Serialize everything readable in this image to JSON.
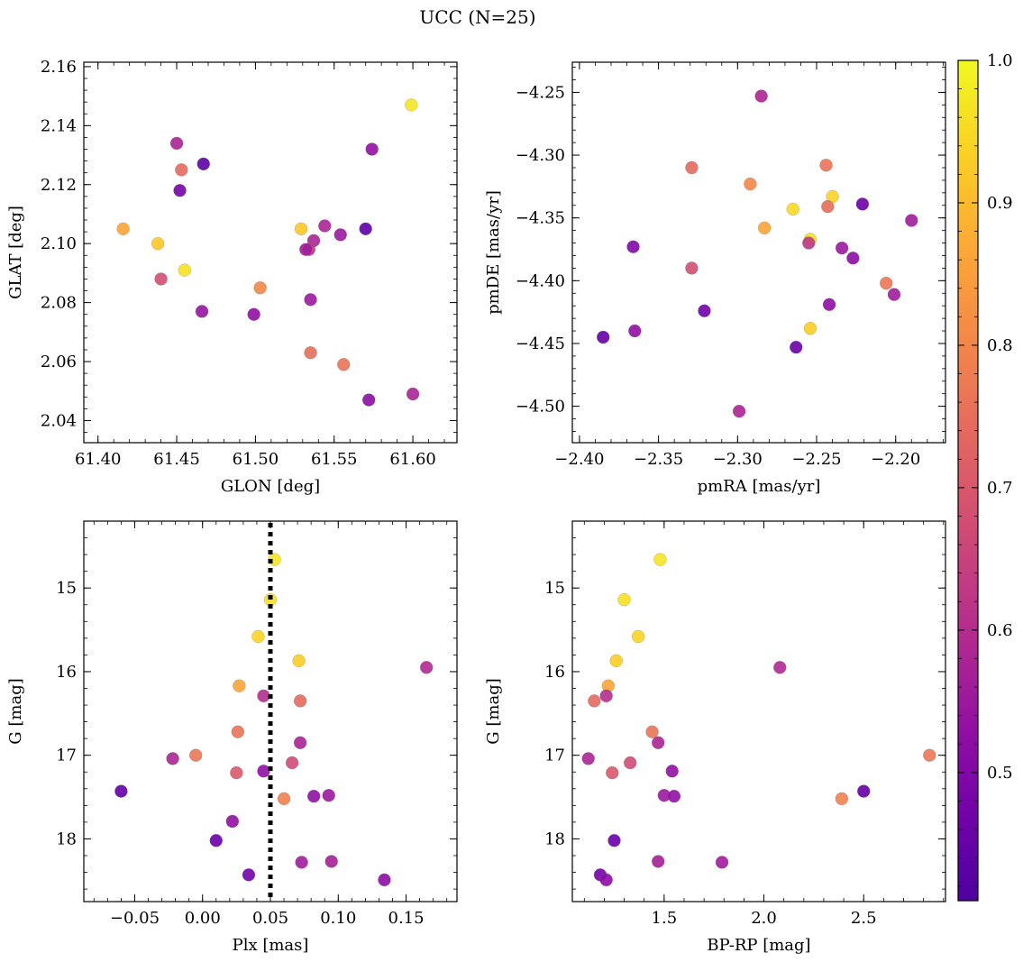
{
  "suptitle": "UCC (N=25)",
  "colorbar": {
    "colormap": "plasma",
    "range": [
      0.41,
      1.0
    ],
    "ticks": [
      0.5,
      0.6,
      0.7,
      0.8,
      0.9,
      1.0
    ],
    "tick_labels": [
      "0.5",
      "0.6",
      "0.7",
      "0.8",
      "0.9",
      "1.0"
    ]
  },
  "chart_data": [
    {
      "type": "scatter",
      "xlabel": "GLON [deg]",
      "ylabel": "GLAT [deg]",
      "xlim": [
        61.391,
        61.628
      ],
      "ylim": [
        2.0325,
        2.1615
      ],
      "xticks": [
        61.4,
        61.45,
        61.5,
        61.55,
        61.6
      ],
      "xtick_labels": [
        "61.40",
        "61.45",
        "61.50",
        "61.55",
        "61.60"
      ],
      "yticks": [
        2.04,
        2.06,
        2.08,
        2.1,
        2.12,
        2.14,
        2.16
      ],
      "ytick_labels": [
        "2.04",
        "2.06",
        "2.08",
        "2.10",
        "2.12",
        "2.14",
        "2.16"
      ],
      "points": [
        {
          "x": 61.599,
          "y": 2.147,
          "c": 0.97
        },
        {
          "x": 61.45,
          "y": 2.134,
          "c": 0.58
        },
        {
          "x": 61.574,
          "y": 2.132,
          "c": 0.53
        },
        {
          "x": 61.467,
          "y": 2.127,
          "c": 0.44
        },
        {
          "x": 61.453,
          "y": 2.125,
          "c": 0.74
        },
        {
          "x": 61.452,
          "y": 2.118,
          "c": 0.48
        },
        {
          "x": 61.544,
          "y": 2.106,
          "c": 0.58
        },
        {
          "x": 61.416,
          "y": 2.105,
          "c": 0.86
        },
        {
          "x": 61.529,
          "y": 2.105,
          "c": 0.92
        },
        {
          "x": 61.57,
          "y": 2.105,
          "c": 0.44
        },
        {
          "x": 61.554,
          "y": 2.103,
          "c": 0.55
        },
        {
          "x": 61.537,
          "y": 2.101,
          "c": 0.58
        },
        {
          "x": 61.438,
          "y": 2.1,
          "c": 0.92
        },
        {
          "x": 61.534,
          "y": 2.098,
          "c": 0.62
        },
        {
          "x": 61.532,
          "y": 2.098,
          "c": 0.56
        },
        {
          "x": 61.455,
          "y": 2.091,
          "c": 0.96
        },
        {
          "x": 61.44,
          "y": 2.088,
          "c": 0.68
        },
        {
          "x": 61.503,
          "y": 2.085,
          "c": 0.8
        },
        {
          "x": 61.535,
          "y": 2.081,
          "c": 0.55
        },
        {
          "x": 61.466,
          "y": 2.077,
          "c": 0.54
        },
        {
          "x": 61.499,
          "y": 2.076,
          "c": 0.53
        },
        {
          "x": 61.535,
          "y": 2.063,
          "c": 0.75
        },
        {
          "x": 61.556,
          "y": 2.059,
          "c": 0.76
        },
        {
          "x": 61.6,
          "y": 2.049,
          "c": 0.58
        },
        {
          "x": 61.572,
          "y": 2.047,
          "c": 0.52
        }
      ]
    },
    {
      "type": "scatter",
      "xlabel": "pmRA [mas/yr]",
      "ylabel": "pmDE [mas/yr]",
      "xlim": [
        -2.4045,
        -2.1685
      ],
      "ylim": [
        -4.529,
        -4.226
      ],
      "xticks": [
        -2.4,
        -2.35,
        -2.3,
        -2.25,
        -2.2
      ],
      "xtick_labels": [
        "−2.40",
        "−2.35",
        "−2.30",
        "−2.25",
        "−2.20"
      ],
      "yticks": [
        -4.5,
        -4.45,
        -4.4,
        -4.35,
        -4.3,
        -4.25
      ],
      "ytick_labels": [
        "−4.50",
        "−4.45",
        "−4.40",
        "−4.35",
        "−4.30",
        "−4.25"
      ],
      "points": [
        {
          "x": -2.285,
          "y": -4.253,
          "c": 0.58
        },
        {
          "x": -2.244,
          "y": -4.308,
          "c": 0.76
        },
        {
          "x": -2.329,
          "y": -4.31,
          "c": 0.74
        },
        {
          "x": -2.292,
          "y": -4.323,
          "c": 0.8
        },
        {
          "x": -2.24,
          "y": -4.333,
          "c": 0.94
        },
        {
          "x": -2.221,
          "y": -4.339,
          "c": 0.46
        },
        {
          "x": -2.243,
          "y": -4.341,
          "c": 0.75
        },
        {
          "x": -2.265,
          "y": -4.343,
          "c": 0.95
        },
        {
          "x": -2.19,
          "y": -4.352,
          "c": 0.56
        },
        {
          "x": -2.283,
          "y": -4.358,
          "c": 0.86
        },
        {
          "x": -2.254,
          "y": -4.367,
          "c": 0.96
        },
        {
          "x": -2.255,
          "y": -4.37,
          "c": 0.62
        },
        {
          "x": -2.366,
          "y": -4.373,
          "c": 0.5
        },
        {
          "x": -2.234,
          "y": -4.374,
          "c": 0.55
        },
        {
          "x": -2.227,
          "y": -4.382,
          "c": 0.52
        },
        {
          "x": -2.329,
          "y": -4.39,
          "c": 0.68
        },
        {
          "x": -2.206,
          "y": -4.402,
          "c": 0.77
        },
        {
          "x": -2.201,
          "y": -4.411,
          "c": 0.56
        },
        {
          "x": -2.242,
          "y": -4.419,
          "c": 0.53
        },
        {
          "x": -2.321,
          "y": -4.424,
          "c": 0.47
        },
        {
          "x": -2.254,
          "y": -4.438,
          "c": 0.93
        },
        {
          "x": -2.365,
          "y": -4.44,
          "c": 0.53
        },
        {
          "x": -2.385,
          "y": -4.445,
          "c": 0.45
        },
        {
          "x": -2.263,
          "y": -4.453,
          "c": 0.46
        },
        {
          "x": -2.299,
          "y": -4.504,
          "c": 0.58
        }
      ]
    },
    {
      "type": "scatter",
      "xlabel": "Plx [mas]",
      "ylabel": "G [mag]",
      "xlim": [
        -0.0875,
        0.1875
      ],
      "ylim": [
        18.75,
        14.2
      ],
      "xticks": [
        -0.05,
        0.0,
        0.05,
        0.1,
        0.15
      ],
      "xtick_labels": [
        "−0.05",
        "0.00",
        "0.05",
        "0.10",
        "0.15"
      ],
      "yticks": [
        15,
        16,
        17,
        18
      ],
      "ytick_labels": [
        "15",
        "16",
        "17",
        "18"
      ],
      "vline": 0.05,
      "points": [
        {
          "x": 0.053,
          "y": 14.66,
          "c": 0.97
        },
        {
          "x": 0.05,
          "y": 15.14,
          "c": 0.96
        },
        {
          "x": 0.041,
          "y": 15.58,
          "c": 0.94
        },
        {
          "x": 0.071,
          "y": 15.87,
          "c": 0.93
        },
        {
          "x": 0.165,
          "y": 15.95,
          "c": 0.59
        },
        {
          "x": 0.027,
          "y": 16.17,
          "c": 0.86
        },
        {
          "x": 0.045,
          "y": 16.29,
          "c": 0.6
        },
        {
          "x": 0.072,
          "y": 16.35,
          "c": 0.74
        },
        {
          "x": 0.026,
          "y": 16.72,
          "c": 0.76
        },
        {
          "x": 0.072,
          "y": 16.85,
          "c": 0.58
        },
        {
          "x": -0.005,
          "y": 17.0,
          "c": 0.77
        },
        {
          "x": -0.022,
          "y": 17.04,
          "c": 0.58
        },
        {
          "x": 0.066,
          "y": 17.09,
          "c": 0.67
        },
        {
          "x": 0.045,
          "y": 17.19,
          "c": 0.53
        },
        {
          "x": 0.025,
          "y": 17.21,
          "c": 0.7
        },
        {
          "x": -0.06,
          "y": 17.43,
          "c": 0.45
        },
        {
          "x": 0.093,
          "y": 17.48,
          "c": 0.55
        },
        {
          "x": 0.082,
          "y": 17.49,
          "c": 0.53
        },
        {
          "x": 0.06,
          "y": 17.52,
          "c": 0.79
        },
        {
          "x": 0.022,
          "y": 17.79,
          "c": 0.53
        },
        {
          "x": 0.01,
          "y": 18.02,
          "c": 0.46
        },
        {
          "x": 0.073,
          "y": 18.28,
          "c": 0.56
        },
        {
          "x": 0.095,
          "y": 18.27,
          "c": 0.57
        },
        {
          "x": 0.034,
          "y": 18.43,
          "c": 0.47
        },
        {
          "x": 0.134,
          "y": 18.49,
          "c": 0.52
        }
      ]
    },
    {
      "type": "scatter",
      "xlabel": "BP-RP [mag]",
      "ylabel": "G [mag]",
      "xlim": [
        1.04,
        2.91
      ],
      "ylim": [
        18.75,
        14.2
      ],
      "xticks": [
        1.5,
        2.0,
        2.5
      ],
      "xtick_labels": [
        "1.5",
        "2.0",
        "2.5"
      ],
      "yticks": [
        15,
        16,
        17,
        18
      ],
      "ytick_labels": [
        "15",
        "16",
        "17",
        "18"
      ],
      "points": [
        {
          "x": 1.48,
          "y": 14.66,
          "c": 0.97
        },
        {
          "x": 1.3,
          "y": 15.14,
          "c": 0.96
        },
        {
          "x": 1.37,
          "y": 15.58,
          "c": 0.94
        },
        {
          "x": 1.26,
          "y": 15.87,
          "c": 0.93
        },
        {
          "x": 2.08,
          "y": 15.95,
          "c": 0.59
        },
        {
          "x": 1.22,
          "y": 16.17,
          "c": 0.86
        },
        {
          "x": 1.21,
          "y": 16.29,
          "c": 0.6
        },
        {
          "x": 1.15,
          "y": 16.35,
          "c": 0.74
        },
        {
          "x": 1.44,
          "y": 16.72,
          "c": 0.76
        },
        {
          "x": 1.47,
          "y": 16.85,
          "c": 0.58
        },
        {
          "x": 2.83,
          "y": 17.0,
          "c": 0.77
        },
        {
          "x": 1.12,
          "y": 17.04,
          "c": 0.58
        },
        {
          "x": 1.33,
          "y": 17.09,
          "c": 0.67
        },
        {
          "x": 1.54,
          "y": 17.19,
          "c": 0.53
        },
        {
          "x": 1.24,
          "y": 17.21,
          "c": 0.7
        },
        {
          "x": 2.5,
          "y": 17.43,
          "c": 0.45
        },
        {
          "x": 1.5,
          "y": 17.48,
          "c": 0.55
        },
        {
          "x": 1.55,
          "y": 17.49,
          "c": 0.53
        },
        {
          "x": 2.39,
          "y": 17.52,
          "c": 0.79
        },
        {
          "x": 1.25,
          "y": 18.02,
          "c": 0.46
        },
        {
          "x": 1.47,
          "y": 18.27,
          "c": 0.57
        },
        {
          "x": 1.79,
          "y": 18.28,
          "c": 0.56
        },
        {
          "x": 1.18,
          "y": 18.43,
          "c": 0.47
        },
        {
          "x": 1.21,
          "y": 18.49,
          "c": 0.52
        }
      ]
    }
  ]
}
